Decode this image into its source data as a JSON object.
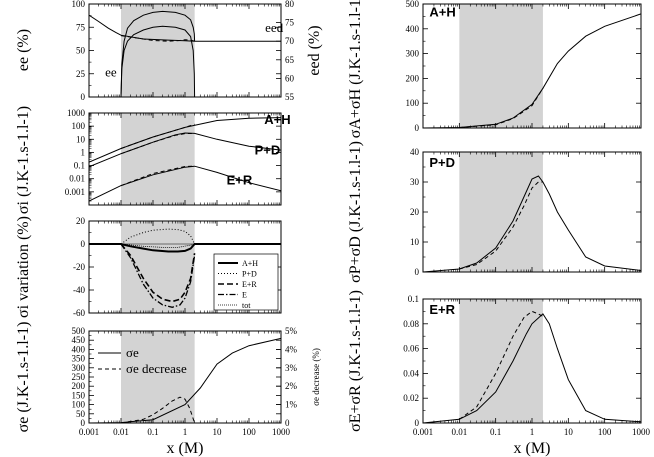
{
  "figure": {
    "shared_xlabel": "x (M)"
  },
  "chart_data": [
    {
      "id": "ee",
      "type": "line",
      "ylabel": "ee (%)",
      "y2label": "eed (%)",
      "xticks": [],
      "ylim": [
        0,
        100
      ],
      "y2lim": [
        55,
        80
      ],
      "yticks": [
        "0",
        "25",
        "50",
        "75",
        "100"
      ],
      "y2ticks": [
        "55",
        "60",
        "65",
        "70",
        "75",
        "80"
      ],
      "xlim": [
        0.001,
        1000
      ],
      "shade": [
        0.01,
        2
      ],
      "annotations": [
        {
          "text": "ee",
          "x": 0.0032,
          "y": 22
        },
        {
          "text": "eed",
          "x": 320,
          "y": 70
        }
      ],
      "series": [
        {
          "name": "eed",
          "dash": "",
          "axis": "y2",
          "x": [
            0.001,
            0.002,
            0.004,
            0.007,
            0.01,
            0.05,
            0.3,
            1,
            2,
            10,
            100,
            1000
          ],
          "y": [
            77,
            75.3,
            73.5,
            72.3,
            71.6,
            70.6,
            70.3,
            70.1,
            70,
            70,
            70,
            70
          ]
        },
        {
          "name": "eed dashed",
          "dash": "4,3",
          "axis": "y2",
          "x": [
            0.01,
            0.05,
            0.1,
            0.3,
            0.7,
            1,
            1.5,
            2
          ],
          "y": [
            71.5,
            70.6,
            70.2,
            70,
            70.2,
            70.4,
            70.3,
            70
          ]
        },
        {
          "name": "ee upper",
          "dash": "",
          "axis": "y",
          "x": [
            0.01,
            0.0106,
            0.0125,
            0.016,
            0.025,
            0.05,
            0.1,
            0.2,
            0.5,
            1,
            1.5,
            1.8,
            1.95,
            2
          ],
          "y": [
            0,
            35,
            60,
            74,
            82,
            88,
            91,
            92,
            91,
            88,
            83,
            75,
            68,
            60
          ]
        },
        {
          "name": "ee lower",
          "dash": "",
          "axis": "y",
          "x": [
            0.01,
            0.0106,
            0.0125,
            0.016,
            0.025,
            0.05,
            0.1,
            0.2,
            0.5,
            1,
            1.5,
            1.8,
            1.95,
            2
          ],
          "y": [
            0,
            30,
            50,
            60,
            67,
            72,
            75,
            76,
            75,
            72,
            65,
            50,
            25,
            0
          ]
        }
      ]
    },
    {
      "id": "sigma-i",
      "type": "line",
      "ylabel": "σi (J.K-1.s-1.l-1)",
      "yscale": "log",
      "ylim": [
        0.0001,
        1000
      ],
      "xlim": [
        0.001,
        1000
      ],
      "xticks": [],
      "shade": [
        0.01,
        2
      ],
      "yticks": [
        "0.001",
        "0.01",
        "0.1",
        "1",
        "10",
        "100",
        "1000"
      ],
      "annotations": [
        {
          "text": "A+H",
          "x": 300,
          "y": 150
        },
        {
          "text": "P+D",
          "x": 150,
          "y": 0.7
        },
        {
          "text": "E+R",
          "x": 20,
          "y": 0.0035
        }
      ],
      "series": [
        {
          "name": "A+H",
          "dash": "",
          "x": [
            0.001,
            0.01,
            0.1,
            1,
            10,
            100,
            1000
          ],
          "y": [
            0.18,
            2,
            15,
            80,
            270,
            400,
            450
          ]
        },
        {
          "name": "A+H dashed",
          "dash": "4,3",
          "x": [
            0.01,
            0.1,
            1,
            2
          ],
          "y": [
            2,
            15,
            80,
            140
          ]
        },
        {
          "name": "P+D",
          "dash": "",
          "x": [
            0.001,
            0.01,
            0.1,
            0.5,
            1,
            2,
            10,
            100,
            1000
          ],
          "y": [
            0.08,
            0.8,
            6,
            22,
            30,
            28,
            10,
            3,
            1.5
          ]
        },
        {
          "name": "P+D dashed",
          "dash": "4,3",
          "x": [
            0.01,
            0.1,
            0.5,
            1,
            2
          ],
          "y": [
            0.8,
            6,
            20,
            27,
            28
          ]
        },
        {
          "name": "E+R",
          "dash": "",
          "x": [
            0.001,
            0.01,
            0.1,
            1,
            2,
            10,
            100,
            1000
          ],
          "y": [
            0.0002,
            0.003,
            0.02,
            0.075,
            0.09,
            0.03,
            0.005,
            0.0012
          ]
        },
        {
          "name": "E+R dashed",
          "dash": "4,3",
          "x": [
            0.01,
            0.1,
            1,
            2
          ],
          "y": [
            0.003,
            0.025,
            0.085,
            0.09
          ]
        }
      ]
    },
    {
      "id": "variation",
      "type": "line",
      "ylabel": "σi variation (%)",
      "ylim": [
        -60,
        20
      ],
      "xlim": [
        0.001,
        1000
      ],
      "xticks": [],
      "shade": [
        0.01,
        2
      ],
      "yticks": [
        "-60",
        "-40",
        "-20",
        "0",
        "20"
      ],
      "legend": [
        "A+H",
        "P+D",
        "E+R",
        "E",
        "tot"
      ],
      "series": [
        {
          "name": "A+H",
          "dash": "",
          "width": 2,
          "x": [
            0.001,
            0.01,
            0.02,
            0.05,
            0.1,
            0.3,
            0.6,
            1,
            1.5,
            2,
            1000
          ],
          "y": [
            0,
            0,
            -2,
            -4,
            -5.5,
            -6.5,
            -6.5,
            -6,
            -4,
            0,
            0
          ]
        },
        {
          "name": "P+D",
          "dash": "1,2",
          "x": [
            0.01,
            0.02,
            0.05,
            0.1,
            0.3,
            0.6,
            1,
            1.5,
            2
          ],
          "y": [
            0,
            6,
            10,
            12,
            13,
            12.5,
            11,
            7,
            0
          ]
        },
        {
          "name": "E+R",
          "dash": "6,3",
          "width": 1.6,
          "x": [
            0.01,
            0.02,
            0.05,
            0.1,
            0.2,
            0.4,
            0.7,
            1,
            1.5,
            2
          ],
          "y": [
            0,
            -10,
            -30,
            -42,
            -48,
            -50,
            -48,
            -42,
            -30,
            -8
          ]
        },
        {
          "name": "E",
          "dash": "6,2,1.5,2",
          "width": 1.3,
          "x": [
            0.01,
            0.02,
            0.05,
            0.1,
            0.2,
            0.4,
            0.7,
            1,
            1.5,
            2
          ],
          "y": [
            0,
            -12,
            -35,
            -47,
            -53,
            -55,
            -53,
            -47,
            -33,
            -10
          ]
        },
        {
          "name": "tot",
          "dash": "1,1",
          "width": 0.8,
          "x": [
            0.01,
            0.05,
            0.2,
            0.6,
            1.5,
            2
          ],
          "y": [
            0,
            -2,
            -3,
            -3,
            -1,
            0
          ]
        }
      ]
    },
    {
      "id": "sigma-e",
      "type": "line",
      "ylabel": "σe (J.K-1.s-1.l-1)",
      "y2label": "σe decrease (%)",
      "xlabel": "x (M)",
      "xlim": [
        0.001,
        1000
      ],
      "ylim": [
        0,
        500
      ],
      "y2lim": [
        0,
        5
      ],
      "shade": [
        0.01,
        2
      ],
      "xticks": [
        "0.001",
        "0.01",
        "0.1",
        "1",
        "10",
        "100",
        "1000"
      ],
      "yticks": [
        "0",
        "50",
        "100",
        "150",
        "200",
        "250",
        "300",
        "350",
        "400",
        "450",
        "500"
      ],
      "y2ticks": [
        "0",
        "1%",
        "2%",
        "3%",
        "4%",
        "5%"
      ],
      "legend": [
        "σe",
        "σe decrease"
      ],
      "series": [
        {
          "name": "σe",
          "dash": "",
          "axis": "y",
          "x": [
            0.001,
            0.01,
            0.1,
            1,
            3,
            10,
            30,
            100,
            1000
          ],
          "y": [
            0,
            2,
            18,
            100,
            190,
            320,
            380,
            420,
            460
          ]
        },
        {
          "name": "σe decrease",
          "dash": "4,3",
          "axis": "y2",
          "x": [
            0.01,
            0.05,
            0.1,
            0.2,
            0.4,
            0.7,
            1,
            1.4,
            2
          ],
          "y": [
            0,
            0.2,
            0.45,
            0.8,
            1.2,
            1.4,
            1.3,
            0.8,
            0
          ]
        }
      ]
    },
    {
      "id": "AH",
      "type": "line",
      "ylabel": "σA+σH (J.K-1.s-1.l-1)",
      "xlim": [
        0.001,
        1000
      ],
      "ylim": [
        0,
        500
      ],
      "xticks": [],
      "shade": [
        0.01,
        2
      ],
      "yticks": [
        "0",
        "100",
        "200",
        "300",
        "400",
        "500"
      ],
      "annotations": [
        {
          "text": "A+H",
          "x": 0.0015,
          "y": 450
        }
      ],
      "series": [
        {
          "name": "A+H",
          "dash": "",
          "x": [
            0.001,
            0.01,
            0.1,
            0.3,
            1,
            2,
            5,
            10,
            30,
            100,
            1000
          ],
          "y": [
            0,
            2,
            15,
            40,
            95,
            160,
            260,
            310,
            370,
            410,
            460
          ]
        },
        {
          "name": "A+H dashed",
          "dash": "4,3",
          "x": [
            0.01,
            0.1,
            0.3,
            1,
            2
          ],
          "y": [
            2,
            13,
            38,
            90,
            160
          ]
        }
      ]
    },
    {
      "id": "PD",
      "type": "line",
      "ylabel": "σP+σD (J.K-1.s-1.l-1)",
      "xlim": [
        0.001,
        1000
      ],
      "ylim": [
        0,
        40
      ],
      "xticks": [],
      "shade": [
        0.01,
        2
      ],
      "yticks": [
        "0",
        "10",
        "20",
        "30",
        "40"
      ],
      "annotations": [
        {
          "text": "P+D",
          "x": 0.0015,
          "y": 35
        }
      ],
      "series": [
        {
          "name": "P+D",
          "dash": "",
          "x": [
            0.001,
            0.01,
            0.03,
            0.1,
            0.3,
            0.6,
            1,
            1.5,
            2,
            3,
            5,
            10,
            30,
            100,
            1000
          ],
          "y": [
            0,
            1,
            3,
            8,
            17,
            25,
            31,
            32,
            30,
            26,
            20,
            14,
            5,
            2,
            0.5
          ]
        },
        {
          "name": "P+D dashed",
          "dash": "4,3",
          "x": [
            0.01,
            0.03,
            0.1,
            0.3,
            0.6,
            1,
            1.5,
            2
          ],
          "y": [
            1,
            2.5,
            7,
            15,
            22,
            28,
            30,
            30
          ]
        }
      ]
    },
    {
      "id": "ER",
      "type": "line",
      "ylabel": "σE+σR (J.K-1.s-1.l-1)",
      "xlabel": "x (M)",
      "xlim": [
        0.001,
        1000
      ],
      "ylim": [
        0,
        0.1
      ],
      "shade": [
        0.01,
        2
      ],
      "xticks": [
        "0.001",
        "0.01",
        "0.1",
        "1",
        "10",
        "100",
        "1000"
      ],
      "yticks": [
        "0",
        "0.02",
        "0.04",
        "0.06",
        "0.08",
        "0.1"
      ],
      "annotations": [
        {
          "text": "E+R",
          "x": 0.0015,
          "y": 0.088
        }
      ],
      "series": [
        {
          "name": "E+R",
          "dash": "",
          "x": [
            0.001,
            0.01,
            0.03,
            0.1,
            0.3,
            0.7,
            1,
            2,
            3,
            5,
            10,
            30,
            100,
            1000
          ],
          "y": [
            0,
            0.003,
            0.01,
            0.025,
            0.05,
            0.072,
            0.08,
            0.088,
            0.08,
            0.06,
            0.035,
            0.01,
            0.003,
            0.001
          ]
        },
        {
          "name": "E+R dashed",
          "dash": "4,3",
          "x": [
            0.01,
            0.03,
            0.1,
            0.3,
            0.6,
            1,
            1.5,
            2
          ],
          "y": [
            0.003,
            0.013,
            0.04,
            0.07,
            0.085,
            0.09,
            0.088,
            0.086
          ]
        }
      ]
    }
  ]
}
